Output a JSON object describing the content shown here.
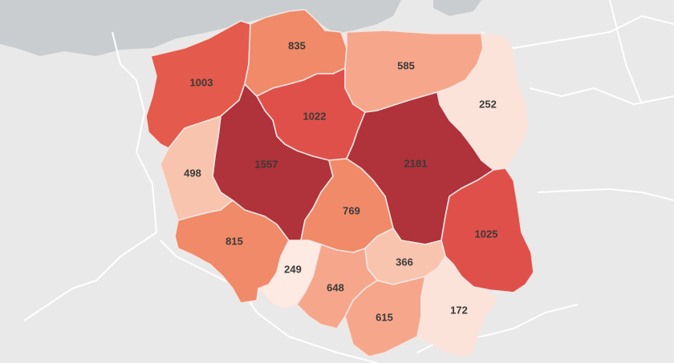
{
  "map": {
    "background_color": "#e9e9e9",
    "sea_color": "#c9cdd0",
    "scale_colors": {
      "lowest": "#fbe4da",
      "low": "#f8c3ad",
      "mid_low": "#f5a286",
      "mid": "#f07f60",
      "mid_high": "#e45a4c",
      "high": "#c73b3b",
      "highest": "#b0323a"
    },
    "regions": [
      {
        "id": "zachodniopomorskie",
        "value": "1003",
        "color": "#e45a4c"
      },
      {
        "id": "pomorskie",
        "value": "835",
        "color": "#f08a68"
      },
      {
        "id": "warminsko-mazurskie",
        "value": "585",
        "color": "#f6a78b"
      },
      {
        "id": "podlaskie",
        "value": "252",
        "color": "#fbe3d9"
      },
      {
        "id": "kujawsko-pomorskie",
        "value": "1022",
        "color": "#e0504a"
      },
      {
        "id": "wielkopolskie",
        "value": "1557",
        "color": "#b0323a"
      },
      {
        "id": "mazowieckie",
        "value": "2181",
        "color": "#b0323a"
      },
      {
        "id": "lubuskie",
        "value": "498",
        "color": "#f8c4ae"
      },
      {
        "id": "lodzkie",
        "value": "769",
        "color": "#f08a68"
      },
      {
        "id": "lubelskie",
        "value": "1025",
        "color": "#e0504a"
      },
      {
        "id": "dolnoslaskie",
        "value": "815",
        "color": "#f08a68"
      },
      {
        "id": "opolskie",
        "value": "249",
        "color": "#fdeae2"
      },
      {
        "id": "swietokrzyskie",
        "value": "366",
        "color": "#f8c4ae"
      },
      {
        "id": "slaskie",
        "value": "648",
        "color": "#f6a78b"
      },
      {
        "id": "malopolskie",
        "value": "615",
        "color": "#f6a78b"
      },
      {
        "id": "podkarpackie",
        "value": "172",
        "color": "#fbe3d9"
      }
    ]
  }
}
